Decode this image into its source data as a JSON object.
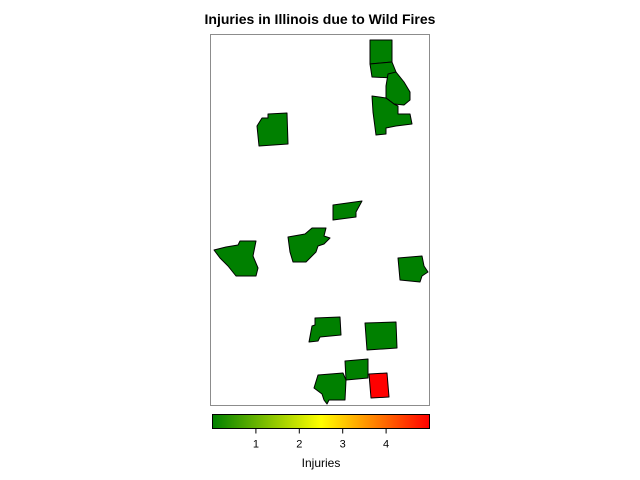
{
  "title": "Injuries in Illinois due to Wild Fires",
  "legend": {
    "label": "Injuries",
    "ticks": [
      "1",
      "2",
      "3",
      "4"
    ],
    "tick_values": [
      1,
      2,
      3,
      4
    ],
    "range": [
      0,
      5
    ],
    "colors": [
      "#008000",
      "#ffff00",
      "#ff0000"
    ]
  },
  "counties": [
    {
      "id": "north-top",
      "injuries": 0,
      "color": "#008000"
    },
    {
      "id": "north-mid",
      "injuries": 0,
      "color": "#008000"
    },
    {
      "id": "north-east",
      "injuries": 0,
      "color": "#008000"
    },
    {
      "id": "north-south",
      "injuries": 0,
      "color": "#008000"
    },
    {
      "id": "northwest",
      "injuries": 0,
      "color": "#008000"
    },
    {
      "id": "central-north",
      "injuries": 0,
      "color": "#008000"
    },
    {
      "id": "west",
      "injuries": 0,
      "color": "#008000"
    },
    {
      "id": "central",
      "injuries": 0,
      "color": "#008000"
    },
    {
      "id": "east",
      "injuries": 0,
      "color": "#008000"
    },
    {
      "id": "south-west",
      "injuries": 0,
      "color": "#008000"
    },
    {
      "id": "south-east",
      "injuries": 0,
      "color": "#008000"
    },
    {
      "id": "far-south-a",
      "injuries": 0,
      "color": "#008000"
    },
    {
      "id": "far-south-b",
      "injuries": 0,
      "color": "#008000"
    },
    {
      "id": "far-south-red",
      "injuries": 5,
      "color": "#ff0000"
    }
  ]
}
